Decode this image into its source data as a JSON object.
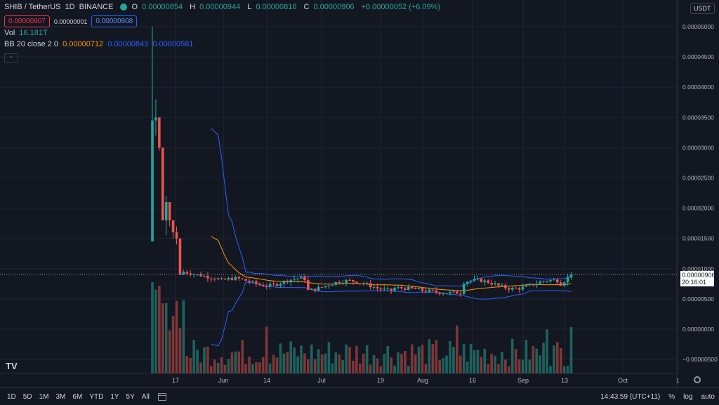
{
  "header": {
    "symbol": "SHIB / TetherUS",
    "interval": "1D",
    "exchange": "BINANCE",
    "ohlc": {
      "o_label": "O",
      "o": "0.00000854",
      "h_label": "H",
      "h": "0.00000944",
      "l_label": "L",
      "l": "0.00000816",
      "c_label": "C",
      "c": "0.00000906",
      "change": "+0.00000052 (+6.09%)"
    },
    "sell_price": "0.00000907",
    "spread": "0.00000001",
    "buy_price": "0.00000908",
    "vol_label": "Vol",
    "vol_value": "16.181T",
    "bb_label": "BB 20 close 2 0",
    "bb_basis": "0.00000712",
    "bb_upper": "0.00000843",
    "bb_lower": "0.00000581"
  },
  "currency": "USDT",
  "last_price": "0.00000906",
  "countdown": "20:16:01",
  "colors": {
    "background": "#131722",
    "up": "#26a69a",
    "down": "#ef5350",
    "bb_band": "#2962ff",
    "bb_basis": "#ff9800",
    "grid": "#1f2433"
  },
  "chart_data": {
    "type": "candlestick",
    "y_axis": {
      "ticks": [
        "0.00005000",
        "0.00004500",
        "0.00004000",
        "0.00003500",
        "0.00003000",
        "0.00002500",
        "0.00002000",
        "0.00001500",
        "0.00001000",
        "0.00000500",
        "0.00000000",
        "−0.00000500"
      ],
      "ylim": [
        -5e-06,
        5e-05
      ]
    },
    "x_axis": {
      "ticks": [
        "17",
        "Jun",
        "14",
        "Jul",
        "19",
        "Aug",
        "16",
        "Sep",
        "13",
        "Oct",
        "1"
      ]
    },
    "candles_approx": [
      [
        1.45e-05,
        5e-05,
        1.45e-05,
        3.45e-05
      ],
      [
        3.45e-05,
        3.8e-05,
        3.2e-05,
        3.5e-05
      ],
      [
        3.5e-05,
        3.5e-05,
        2.95e-05,
        3e-05
      ],
      [
        3e-05,
        3e-05,
        1.8e-05,
        1.8e-05
      ],
      [
        1.8e-05,
        2.2e-05,
        1.55e-05,
        2.1e-05
      ],
      [
        2.1e-05,
        2.1e-05,
        1.7e-05,
        1.8e-05
      ],
      [
        1.8e-05,
        1.8e-05,
        1.5e-05,
        1.6e-05
      ],
      [
        1.6e-05,
        1.7e-05,
        1.4e-05,
        1.5e-05
      ],
      [
        1.5e-05,
        1.5e-05,
        9.5e-06,
        9e-06
      ]
    ],
    "note_series": [
      "volume bars",
      "Bollinger Bands 20,2"
    ]
  },
  "bottom_bar": {
    "timeframes": [
      "1D",
      "5D",
      "1M",
      "3M",
      "6M",
      "YTD",
      "1Y",
      "5Y",
      "All"
    ],
    "time": "14:43:59 (UTC+11)",
    "percent": "%",
    "log": "log",
    "auto": "auto"
  }
}
